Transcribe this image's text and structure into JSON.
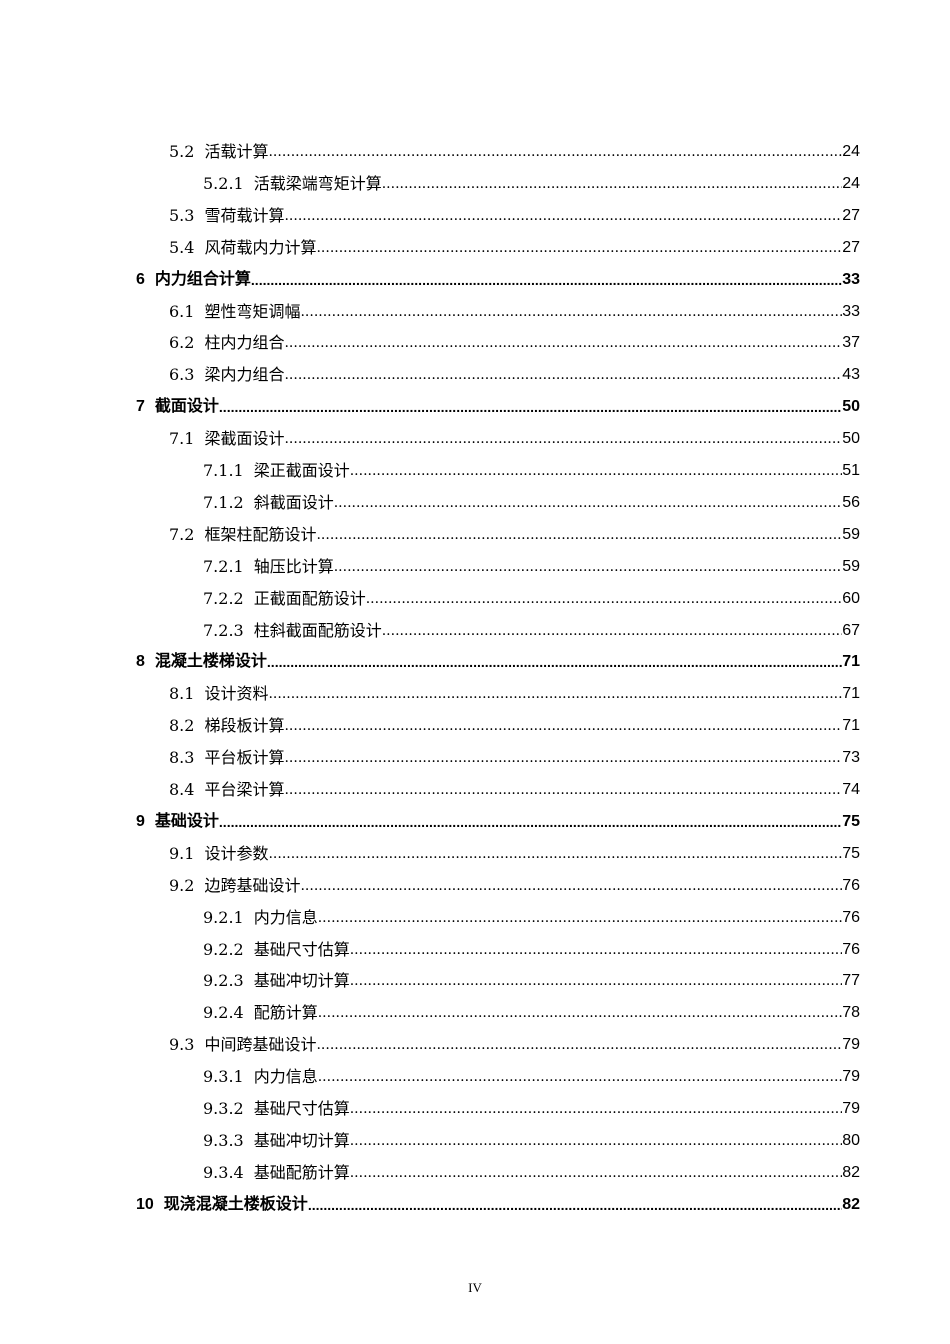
{
  "toc": [
    {
      "level": 2,
      "num": "5.2",
      "title": "活载计算",
      "page": "24"
    },
    {
      "level": 3,
      "num": "5.2.1",
      "title": "活载梁端弯矩计算",
      "page": "24"
    },
    {
      "level": 2,
      "num": "5.3",
      "title": "雪荷载计算",
      "page": "27"
    },
    {
      "level": 2,
      "num": "5.4",
      "title": "风荷载内力计算",
      "page": "27"
    },
    {
      "level": 1,
      "num": "6",
      "title": "内力组合计算",
      "page": "33"
    },
    {
      "level": 2,
      "num": "6.1",
      "title": "塑性弯矩调幅",
      "page": "33"
    },
    {
      "level": 2,
      "num": "6.2",
      "title": "柱内力组合",
      "page": "37"
    },
    {
      "level": 2,
      "num": "6.3",
      "title": "梁内力组合",
      "page": "43"
    },
    {
      "level": 1,
      "num": "7",
      "title": "截面设计",
      "page": "50"
    },
    {
      "level": 2,
      "num": "7.1",
      "title": "梁截面设计",
      "page": "50"
    },
    {
      "level": 3,
      "num": "7.1.1",
      "title": "梁正截面设计",
      "page": "51"
    },
    {
      "level": 3,
      "num": "7.1.2",
      "title": "斜截面设计",
      "page": "56"
    },
    {
      "level": 2,
      "num": "7.2",
      "title": "框架柱配筋设计",
      "page": "59"
    },
    {
      "level": 3,
      "num": "7.2.1",
      "title": "轴压比计算",
      "page": "59"
    },
    {
      "level": 3,
      "num": "7.2.2",
      "title": "正截面配筋设计",
      "page": "60"
    },
    {
      "level": 3,
      "num": "7.2.3",
      "title": "柱斜截面配筋设计",
      "page": "67"
    },
    {
      "level": 1,
      "num": "8",
      "title": "混凝土楼梯设计",
      "page": "71"
    },
    {
      "level": 2,
      "num": "8.1",
      "title": "设计资料",
      "page": "71"
    },
    {
      "level": 2,
      "num": "8.2",
      "title": "梯段板计算",
      "page": "71"
    },
    {
      "level": 2,
      "num": "8.3",
      "title": "平台板计算",
      "page": "73"
    },
    {
      "level": 2,
      "num": "8.4",
      "title": "平台梁计算",
      "page": "74"
    },
    {
      "level": 1,
      "num": "9",
      "title": "基础设计",
      "page": "75"
    },
    {
      "level": 2,
      "num": "9.1",
      "title": "设计参数",
      "page": "75"
    },
    {
      "level": 2,
      "num": "9.2",
      "title": "边跨基础设计",
      "page": "76"
    },
    {
      "level": 3,
      "num": "9.2.1",
      "title": "内力信息",
      "page": "76"
    },
    {
      "level": 3,
      "num": "9.2.2",
      "title": "基础尺寸估算",
      "page": "76"
    },
    {
      "level": 3,
      "num": "9.2.3",
      "title": "基础冲切计算",
      "page": "77"
    },
    {
      "level": 3,
      "num": "9.2.4",
      "title": "配筋计算",
      "page": "78"
    },
    {
      "level": 2,
      "num": "9.3",
      "title": "中间跨基础设计",
      "page": "79"
    },
    {
      "level": 3,
      "num": "9.3.1",
      "title": "内力信息",
      "page": "79"
    },
    {
      "level": 3,
      "num": "9.3.2",
      "title": "基础尺寸估算",
      "page": "79"
    },
    {
      "level": 3,
      "num": "9.3.3",
      "title": "基础冲切计算",
      "page": "80"
    },
    {
      "level": 3,
      "num": "9.3.4",
      "title": "基础配筋计算",
      "page": "82"
    },
    {
      "level": 1,
      "num": "10",
      "title": "现浇混凝土楼板设计",
      "page": "82"
    }
  ],
  "footer": {
    "page_number": "IV"
  }
}
